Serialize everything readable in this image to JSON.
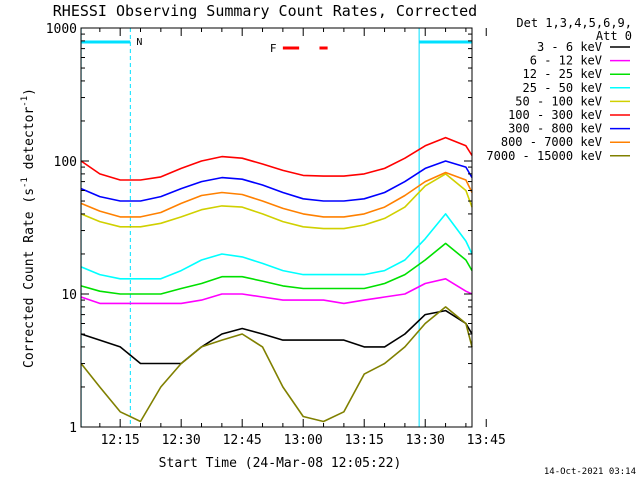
{
  "chart_data": {
    "type": "line",
    "title": "RHESSI Observing Summary Count Rates, Corrected",
    "xlabel": "Start Time (24-Mar-08 12:05:22)",
    "ylabel_main": "Corrected Count Rate (s",
    "ylabel_sup1": "-1",
    "ylabel_mid": " detector",
    "ylabel_sup2": "-1",
    "ylabel_end": ")",
    "yscale": "log",
    "ylim": [
      1,
      1000
    ],
    "y_ticks": [
      {
        "value": 1,
        "label": "1"
      },
      {
        "value": 10,
        "label": "10"
      },
      {
        "value": 100,
        "label": "100"
      },
      {
        "value": 1000,
        "label": "1000"
      }
    ],
    "xlim_minutes": [
      5.37,
      101.5
    ],
    "x_ticks": [
      {
        "minute": 15,
        "label": "12:15"
      },
      {
        "minute": 30,
        "label": "12:30"
      },
      {
        "minute": 45,
        "label": "12:45"
      },
      {
        "minute": 60,
        "label": "13:00"
      },
      {
        "minute": 75,
        "label": "13:15"
      },
      {
        "minute": 90,
        "label": "13:30"
      },
      {
        "minute": 105,
        "label": "13:45"
      }
    ],
    "legend": {
      "placement": "right",
      "header1": "Det 1,3,4,5,6,9,",
      "header2": "Att 0"
    },
    "series": [
      {
        "name": "3 - 6 keV",
        "color": "#000000",
        "x": [
          5.4,
          10,
          15,
          20,
          25,
          30,
          35,
          40,
          45,
          50,
          55,
          60,
          65,
          70,
          75,
          80,
          85,
          90,
          95,
          100,
          101.5
        ],
        "y": [
          5,
          4.5,
          4,
          3,
          3,
          3,
          4,
          5,
          5.5,
          5,
          4.5,
          4.5,
          4.5,
          4.5,
          4,
          4,
          5,
          7,
          7.5,
          6,
          5
        ]
      },
      {
        "name": "6 - 12 keV",
        "color": "#ff00ff",
        "x": [
          5.4,
          10,
          15,
          20,
          25,
          30,
          35,
          40,
          45,
          50,
          55,
          60,
          65,
          70,
          75,
          80,
          85,
          90,
          95,
          100,
          101.5
        ],
        "y": [
          9.5,
          8.5,
          8.5,
          8.5,
          8.5,
          8.5,
          9,
          10,
          10,
          9.5,
          9,
          9,
          9,
          8.5,
          9,
          9.5,
          10,
          12,
          13,
          10.5,
          10
        ]
      },
      {
        "name": "12 - 25 keV",
        "color": "#00e000",
        "x": [
          5.4,
          10,
          15,
          20,
          25,
          30,
          35,
          40,
          45,
          50,
          55,
          60,
          65,
          70,
          75,
          80,
          85,
          90,
          95,
          100,
          101.5
        ],
        "y": [
          11.5,
          10.5,
          10,
          10,
          10,
          11,
          12,
          13.5,
          13.5,
          12.5,
          11.5,
          11,
          11,
          11,
          11,
          12,
          14,
          18,
          24,
          18,
          15
        ]
      },
      {
        "name": "25 - 50 keV",
        "color": "#00ffff",
        "x": [
          5.4,
          10,
          15,
          20,
          25,
          30,
          35,
          40,
          45,
          50,
          55,
          60,
          65,
          70,
          75,
          80,
          85,
          90,
          95,
          100,
          101.5
        ],
        "y": [
          16,
          14,
          13,
          13,
          13,
          15,
          18,
          20,
          19,
          17,
          15,
          14,
          14,
          14,
          14,
          15,
          18,
          26,
          40,
          25,
          20
        ]
      },
      {
        "name": "50 - 100 keV",
        "color": "#d0d000",
        "x": [
          5.4,
          10,
          15,
          20,
          25,
          30,
          35,
          40,
          45,
          50,
          55,
          60,
          65,
          70,
          75,
          80,
          85,
          90,
          95,
          100,
          101.5
        ],
        "y": [
          40,
          35,
          32,
          32,
          34,
          38,
          43,
          46,
          45,
          40,
          35,
          32,
          31,
          31,
          33,
          37,
          45,
          65,
          80,
          60,
          45
        ]
      },
      {
        "name": "100 - 300 keV",
        "color": "#ff0000",
        "x": [
          5.4,
          10,
          15,
          20,
          25,
          30,
          35,
          40,
          45,
          50,
          55,
          60,
          65,
          70,
          75,
          80,
          85,
          90,
          95,
          100,
          101.5
        ],
        "y": [
          100,
          80,
          72,
          72,
          76,
          88,
          100,
          108,
          105,
          95,
          85,
          78,
          77,
          77,
          80,
          88,
          105,
          130,
          150,
          130,
          110
        ]
      },
      {
        "name": "300 - 800 keV",
        "color": "#0000ff",
        "x": [
          5.4,
          10,
          15,
          20,
          25,
          30,
          35,
          40,
          45,
          50,
          55,
          60,
          65,
          70,
          75,
          80,
          85,
          90,
          95,
          100,
          101.5
        ],
        "y": [
          62,
          54,
          50,
          50,
          54,
          62,
          70,
          75,
          73,
          66,
          58,
          52,
          50,
          50,
          52,
          58,
          70,
          88,
          100,
          90,
          75
        ]
      },
      {
        "name": "800 - 7000 keV",
        "color": "#ff8000",
        "x": [
          5.4,
          10,
          15,
          20,
          25,
          30,
          35,
          40,
          45,
          50,
          55,
          60,
          65,
          70,
          75,
          80,
          85,
          90,
          95,
          100,
          101.5
        ],
        "y": [
          48,
          42,
          38,
          38,
          41,
          48,
          55,
          58,
          56,
          50,
          44,
          40,
          38,
          38,
          40,
          45,
          55,
          70,
          82,
          72,
          58
        ]
      },
      {
        "name": "7000 - 15000 keV",
        "color": "#808000",
        "x": [
          5.4,
          10,
          15,
          20,
          25,
          30,
          35,
          40,
          45,
          50,
          55,
          60,
          65,
          70,
          75,
          80,
          85,
          90,
          95,
          100,
          101.5
        ],
        "y": [
          3,
          2,
          1.3,
          1.1,
          2,
          3,
          4,
          4.5,
          5,
          4,
          2,
          1.2,
          1.1,
          1.3,
          2.5,
          3,
          4,
          6,
          8,
          6,
          4
        ]
      }
    ],
    "annotations": [
      {
        "label": "N",
        "color": "#00e0ff"
      },
      {
        "label": "F",
        "color": "#ff0000"
      }
    ],
    "night_band_minutes": [
      [
        5.4,
        17.5
      ],
      [
        88.5,
        101.5
      ]
    ],
    "flare_flag_minutes": [
      [
        55,
        59
      ],
      [
        64,
        66
      ]
    ],
    "footer": "14-Oct-2021 03:14"
  }
}
